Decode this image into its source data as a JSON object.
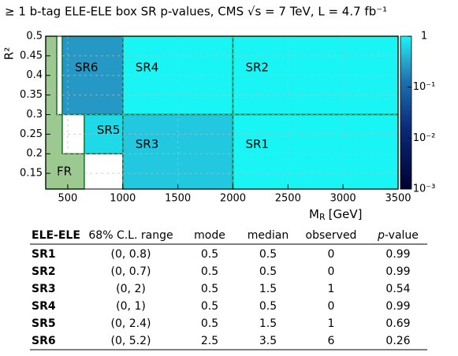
{
  "chart_data": {
    "type": "region-map",
    "title": "≥ 1 b-tag ELE-ELE box SR p-values, CMS √s = 7 TeV, L = 4.7 fb⁻¹",
    "x_label": {
      "symbol": "M",
      "subscript": "R",
      "unit": "[GeV]"
    },
    "y_label": "R²",
    "xlim": [
      300,
      3500
    ],
    "xticks": [
      500,
      1000,
      1500,
      2000,
      2500,
      3000,
      3500
    ],
    "ylim": [
      0.11,
      0.5
    ],
    "yticks": [
      0.15,
      0.2,
      0.25,
      0.3,
      0.35,
      0.4,
      0.45,
      0.5
    ],
    "grid": true,
    "log_color_scale": true,
    "zlim": [
      0.001,
      1
    ],
    "zticks": [
      1,
      {
        "value": 0.1,
        "label": "10⁻¹"
      },
      {
        "value": 0.01,
        "label": "10⁻²"
      },
      {
        "value": 0.001,
        "label": "10⁻³"
      }
    ],
    "fr": {
      "label": "FR",
      "color": "#9bc98f",
      "polygon": [
        [
          300,
          0.11
        ],
        [
          650,
          0.11
        ],
        [
          650,
          0.2
        ],
        [
          450,
          0.2
        ],
        [
          450,
          0.3
        ],
        [
          400,
          0.3
        ],
        [
          400,
          0.5
        ],
        [
          300,
          0.5
        ]
      ]
    },
    "regions": [
      {
        "label": "SR6",
        "x": [
          450,
          1000
        ],
        "y": [
          0.3,
          0.5
        ],
        "value": 0.26
      },
      {
        "label": "SR4",
        "x": [
          1000,
          2000
        ],
        "y": [
          0.3,
          0.5
        ],
        "value": 0.99
      },
      {
        "label": "SR2",
        "x": [
          2000,
          3500
        ],
        "y": [
          0.3,
          0.5
        ],
        "value": 0.99
      },
      {
        "label": "SR5",
        "x": [
          650,
          1000
        ],
        "y": [
          0.2,
          0.3
        ],
        "value": 0.69
      },
      {
        "label": "SR3",
        "x": [
          1000,
          2000
        ],
        "y": [
          0.11,
          0.3
        ],
        "value": 0.54
      },
      {
        "label": "SR1",
        "x": [
          2000,
          3500
        ],
        "y": [
          0.11,
          0.3
        ],
        "value": 0.99
      }
    ]
  },
  "table": {
    "header": [
      "ELE-ELE",
      "68% C.L. range",
      "mode",
      "median",
      "observed",
      {
        "italic": "p",
        "text": "-value"
      }
    ],
    "rows": [
      [
        "SR1",
        "(0, 0.8)",
        "0.5",
        "0.5",
        "0",
        "0.99"
      ],
      [
        "SR2",
        "(0, 0.7)",
        "0.5",
        "0.5",
        "0",
        "0.99"
      ],
      [
        "SR3",
        "(0, 2)",
        "0.5",
        "1.5",
        "1",
        "0.54"
      ],
      [
        "SR4",
        "(0, 1)",
        "0.5",
        "0.5",
        "0",
        "0.99"
      ],
      [
        "SR5",
        "(0, 2.4)",
        "0.5",
        "1.5",
        "1",
        "0.69"
      ],
      [
        "SR6",
        "(0, 5.2)",
        "2.5",
        "3.5",
        "6",
        "0.26"
      ]
    ]
  }
}
